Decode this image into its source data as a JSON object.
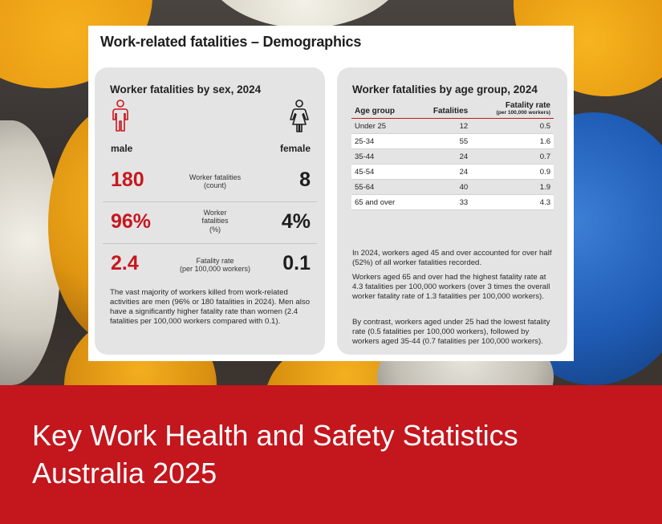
{
  "document": {
    "title": "Work-related fatalities – Demographics"
  },
  "sex_panel": {
    "title": "Worker fatalities by sex, 2024",
    "male_label": "male",
    "female_label": "female",
    "metrics": [
      {
        "label_line1": "Worker fatalities",
        "label_line2": "(count)",
        "label_line3": "",
        "male": "180",
        "female": "8"
      },
      {
        "label_line1": "Worker",
        "label_line2": "fatalities",
        "label_line3": "(%)",
        "male": "96%",
        "female": "4%"
      },
      {
        "label_line1": "Fatality rate",
        "label_line2": "(per 100,000 workers)",
        "label_line3": "",
        "male": "2.4",
        "female": "0.1"
      }
    ],
    "paragraph": "The vast majority of workers killed from work-related activities are men (96% or 180 fatalities in 2024). Men also have a significantly higher fatality rate than women (2.4 fatalities per 100,000 workers compared with 0.1)."
  },
  "age_panel": {
    "title": "Worker fatalities by age group, 2024",
    "columns": {
      "age_group": "Age group",
      "fatalities": "Fatalities",
      "rate": "Fatality rate",
      "rate_sub": "(per 100,000 workers)"
    },
    "rows": [
      {
        "age": "Under 25",
        "fatalities": "12",
        "rate": "0.5"
      },
      {
        "age": "25-34",
        "fatalities": "55",
        "rate": "1.6"
      },
      {
        "age": "35-44",
        "fatalities": "24",
        "rate": "0.7"
      },
      {
        "age": "45-54",
        "fatalities": "24",
        "rate": "0.9"
      },
      {
        "age": "55-64",
        "fatalities": "40",
        "rate": "1.9"
      },
      {
        "age": "65 and over",
        "fatalities": "33",
        "rate": "4.3"
      }
    ],
    "paragraphs": [
      "In 2024, workers aged 45 and over accounted for over half (52%) of all worker fatalities recorded.",
      "Workers aged 65 and over had the highest fatality rate at 4.3 fatalities per 100,000 workers (over 3 times the overall worker fatality rate of 1.3 fatalities per 100,000 workers).",
      "By contrast, workers aged under 25 had the lowest fatality rate (0.5 fatalities per 100,000 workers), followed by workers aged 35-44 (0.7 fatalities per 100,000 workers)."
    ]
  },
  "banner": {
    "line1": "Key Work Health and Safety Statistics",
    "line2": "Australia 2025"
  },
  "colors": {
    "accent_red": "#c8171e",
    "banner_red": "#c3161d",
    "panel_grey": "#e4e4e4"
  },
  "icons": {
    "male": "male-person-icon",
    "female": "female-person-icon"
  }
}
